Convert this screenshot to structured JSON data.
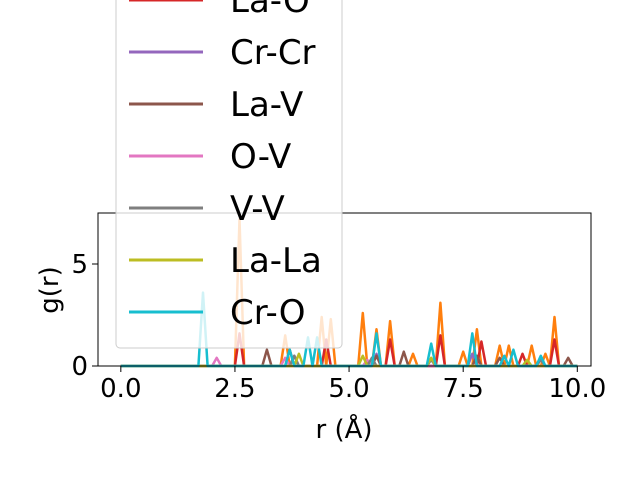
{
  "chart_data": {
    "type": "line",
    "xlabel": "r (Å)",
    "ylabel": "g(r)",
    "xlim": [
      -0.5,
      10.3
    ],
    "ylim": [
      0,
      7.5
    ],
    "x_ticks": [
      {
        "value": 0.0,
        "label": "0.0"
      },
      {
        "value": 2.5,
        "label": "2.5"
      },
      {
        "value": 5.0,
        "label": "5.0"
      },
      {
        "value": 7.5,
        "label": "7.5"
      },
      {
        "value": 10.0,
        "label": "10.0"
      }
    ],
    "y_ticks": [
      {
        "value": 0,
        "label": "0"
      },
      {
        "value": 5,
        "label": "5"
      }
    ],
    "grid": false,
    "legend_placement": "top-center, overflowing above the axes",
    "series": [
      {
        "name": "",
        "color": "#ff7f0e",
        "peaks": [
          [
            2.6,
            7.2
          ],
          [
            3.6,
            1.5
          ],
          [
            4.4,
            2.4
          ],
          [
            4.6,
            2.3
          ],
          [
            5.3,
            2.6
          ],
          [
            5.6,
            1.8
          ],
          [
            5.9,
            2.2
          ],
          [
            6.4,
            0.6
          ],
          [
            7.0,
            3.1
          ],
          [
            7.5,
            0.7
          ],
          [
            7.8,
            1.8
          ],
          [
            8.3,
            1.0
          ],
          [
            8.5,
            1.0
          ],
          [
            9.0,
            1.0
          ],
          [
            9.3,
            0.6
          ],
          [
            9.5,
            2.4
          ]
        ]
      },
      {
        "name": "La-O",
        "color": "#d62728",
        "peaks": [
          [
            2.6,
            1.6
          ],
          [
            4.5,
            1.3
          ],
          [
            5.9,
            1.3
          ],
          [
            7.0,
            1.5
          ],
          [
            7.9,
            1.2
          ],
          [
            8.8,
            0.6
          ],
          [
            9.5,
            1.3
          ]
        ]
      },
      {
        "name": "Cr-Cr",
        "color": "#9467bd",
        "peaks": [
          [
            3.8,
            0.5
          ],
          [
            5.6,
            0.6
          ],
          [
            7.7,
            0.6
          ]
        ]
      },
      {
        "name": "La-V",
        "color": "#8c564b",
        "peaks": [
          [
            3.2,
            0.8
          ],
          [
            3.7,
            0.8
          ],
          [
            5.6,
            0.5
          ],
          [
            6.2,
            0.7
          ],
          [
            7.8,
            0.5
          ],
          [
            8.3,
            0.4
          ],
          [
            9.8,
            0.4
          ]
        ]
      },
      {
        "name": "O-V",
        "color": "#e377c2",
        "peaks": [
          [
            2.1,
            0.4
          ],
          [
            3.6,
            0.4
          ],
          [
            5.4,
            0.3
          ]
        ]
      },
      {
        "name": "V-V",
        "color": "#7f7f7f",
        "peaks": [
          [
            3.8,
            0.5
          ],
          [
            5.5,
            0.4
          ],
          [
            6.8,
            0.3
          ],
          [
            9.2,
            0.3
          ]
        ]
      },
      {
        "name": "La-La",
        "color": "#bcbd22",
        "peaks": [
          [
            3.9,
            0.6
          ],
          [
            5.3,
            0.5
          ],
          [
            6.8,
            0.4
          ],
          [
            8.9,
            0.3
          ]
        ]
      },
      {
        "name": "Cr-O",
        "color": "#17becf",
        "peaks": [
          [
            1.8,
            3.6
          ],
          [
            3.7,
            0.8
          ],
          [
            4.1,
            1.4
          ],
          [
            4.3,
            1.4
          ],
          [
            5.6,
            1.6
          ],
          [
            6.8,
            1.1
          ],
          [
            7.7,
            1.6
          ],
          [
            8.4,
            0.5
          ],
          [
            8.6,
            0.8
          ],
          [
            9.2,
            0.5
          ]
        ]
      }
    ]
  }
}
